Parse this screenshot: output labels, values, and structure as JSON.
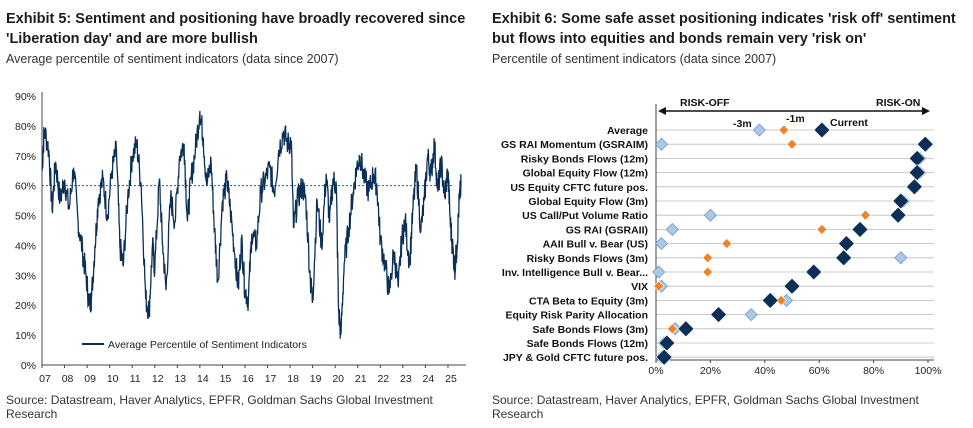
{
  "exhibit5": {
    "title": "Exhibit 5: Sentiment and positioning have broadly recovered since 'Liberation day' and are more bullish",
    "subtitle": "Average percentile of sentiment indicators (data since 2007)",
    "source": "Source: Datastream, Haver Analytics, EPFR, Goldman Sachs Global Investment Research"
  },
  "exhibit6": {
    "title": "Exhibit 6: Some safe asset positioning indicates 'risk off' sentiment but flows into equities and bonds remain very 'risk on'",
    "subtitle": "Percentile of sentiment indicators (data since 2007)",
    "source": "Source: Datastream, Haver Analytics, EPFR, Goldman Sachs Global Investment Research"
  },
  "chart_data": [
    {
      "type": "line",
      "title": "",
      "xlabel": "",
      "ylabel": "",
      "x_ticks": [
        "07",
        "08",
        "09",
        "10",
        "11",
        "12",
        "13",
        "14",
        "15",
        "16",
        "17",
        "18",
        "19",
        "20",
        "21",
        "22",
        "23",
        "24",
        "25"
      ],
      "y_ticks": [
        "0%",
        "10%",
        "20%",
        "30%",
        "40%",
        "50%",
        "60%",
        "70%",
        "80%",
        "90%"
      ],
      "xlim": [
        2007.0,
        2025.8
      ],
      "ylim": [
        0,
        90
      ],
      "legend": "bottom-left",
      "series": [
        {
          "name": "Average Percentile of Sentiment Indicators",
          "color": "#0b2f56",
          "points": [
            [
              2007.0,
              65
            ],
            [
              2007.1,
              79
            ],
            [
              2007.3,
              72
            ],
            [
              2007.45,
              52
            ],
            [
              2007.6,
              68
            ],
            [
              2007.8,
              55
            ],
            [
              2008.0,
              62
            ],
            [
              2008.2,
              52
            ],
            [
              2008.4,
              66
            ],
            [
              2008.6,
              48
            ],
            [
              2008.8,
              38
            ],
            [
              2008.95,
              30
            ],
            [
              2009.1,
              20
            ],
            [
              2009.2,
              23
            ],
            [
              2009.35,
              40
            ],
            [
              2009.5,
              56
            ],
            [
              2009.7,
              62
            ],
            [
              2009.9,
              50
            ],
            [
              2010.1,
              65
            ],
            [
              2010.3,
              72
            ],
            [
              2010.45,
              40
            ],
            [
              2010.6,
              33
            ],
            [
              2010.8,
              56
            ],
            [
              2011.0,
              70
            ],
            [
              2011.2,
              74
            ],
            [
              2011.4,
              60
            ],
            [
              2011.6,
              22
            ],
            [
              2011.75,
              18
            ],
            [
              2011.9,
              40
            ],
            [
              2012.0,
              32
            ],
            [
              2012.2,
              62
            ],
            [
              2012.35,
              40
            ],
            [
              2012.5,
              25
            ],
            [
              2012.7,
              56
            ],
            [
              2012.9,
              48
            ],
            [
              2013.1,
              70
            ],
            [
              2013.3,
              74
            ],
            [
              2013.45,
              48
            ],
            [
              2013.6,
              62
            ],
            [
              2013.8,
              72
            ],
            [
              2014.0,
              85
            ],
            [
              2014.15,
              76
            ],
            [
              2014.3,
              60
            ],
            [
              2014.5,
              68
            ],
            [
              2014.65,
              45
            ],
            [
              2014.8,
              28
            ],
            [
              2015.0,
              55
            ],
            [
              2015.2,
              62
            ],
            [
              2015.35,
              52
            ],
            [
              2015.55,
              37
            ],
            [
              2015.7,
              26
            ],
            [
              2015.85,
              42
            ],
            [
              2016.0,
              25
            ],
            [
              2016.15,
              22
            ],
            [
              2016.3,
              44
            ],
            [
              2016.5,
              40
            ],
            [
              2016.7,
              58
            ],
            [
              2016.9,
              62
            ],
            [
              2017.1,
              66
            ],
            [
              2017.3,
              58
            ],
            [
              2017.5,
              72
            ],
            [
              2017.7,
              78
            ],
            [
              2017.9,
              74
            ],
            [
              2018.05,
              75
            ],
            [
              2018.15,
              46
            ],
            [
              2018.35,
              56
            ],
            [
              2018.55,
              60
            ],
            [
              2018.7,
              55
            ],
            [
              2018.9,
              28
            ],
            [
              2019.0,
              22
            ],
            [
              2019.2,
              55
            ],
            [
              2019.4,
              40
            ],
            [
              2019.6,
              64
            ],
            [
              2019.75,
              48
            ],
            [
              2019.9,
              62
            ],
            [
              2020.05,
              60
            ],
            [
              2020.15,
              18
            ],
            [
              2020.25,
              10
            ],
            [
              2020.4,
              34
            ],
            [
              2020.6,
              46
            ],
            [
              2020.8,
              58
            ],
            [
              2020.95,
              66
            ],
            [
              2021.1,
              70
            ],
            [
              2021.3,
              62
            ],
            [
              2021.5,
              58
            ],
            [
              2021.7,
              64
            ],
            [
              2021.85,
              60
            ],
            [
              2022.0,
              42
            ],
            [
              2022.2,
              34
            ],
            [
              2022.4,
              24
            ],
            [
              2022.6,
              38
            ],
            [
              2022.8,
              26
            ],
            [
              2022.95,
              42
            ],
            [
              2023.1,
              48
            ],
            [
              2023.3,
              34
            ],
            [
              2023.45,
              52
            ],
            [
              2023.6,
              66
            ],
            [
              2023.8,
              45
            ],
            [
              2023.95,
              55
            ],
            [
              2024.1,
              70
            ],
            [
              2024.25,
              64
            ],
            [
              2024.4,
              74
            ],
            [
              2024.55,
              58
            ],
            [
              2024.7,
              68
            ],
            [
              2024.85,
              56
            ],
            [
              2025.0,
              65
            ],
            [
              2025.1,
              48
            ],
            [
              2025.2,
              40
            ],
            [
              2025.3,
              32
            ],
            [
              2025.4,
              40
            ],
            [
              2025.5,
              55
            ],
            [
              2025.58,
              60
            ]
          ]
        }
      ],
      "reference_line": {
        "value": 60,
        "style": "dotted"
      }
    },
    {
      "type": "scatter",
      "title": "",
      "annotations": [
        "RISK-OFF",
        "RISK-ON",
        "-3m",
        "-1m",
        "Current"
      ],
      "x_ticks": [
        "0%",
        "20%",
        "40%",
        "60%",
        "80%",
        "100%"
      ],
      "xlim": [
        0,
        100
      ],
      "categories": [
        "Average",
        "GS RAI Momentum (GSRAIM)",
        "Risky Bonds Flows (12m)",
        "Global Equity Flow (12m)",
        "US Equity CFTC future pos.",
        "Global Equity Flow (3m)",
        "US Call/Put Volume Ratio",
        "GS RAI (GSRAII)",
        "AAII Bull v. Bear (US)",
        "Risky Bonds Flows (3m)",
        "Inv. Intelligence Bull v. Bear...",
        "VIX",
        "CTA Beta to Equity (3m)",
        "Equity Risk Parity Allocation",
        "Safe Bonds Flows (3m)",
        "Safe Bonds Flows (12m)",
        "JPY & Gold CFTC future pos."
      ],
      "series": [
        {
          "name": "-3m",
          "color": "#a9c9e6",
          "values": [
            38,
            2,
            97,
            97,
            95,
            91,
            20,
            6,
            2,
            90,
            1,
            2,
            48,
            35,
            7,
            3,
            2
          ]
        },
        {
          "name": "-1m",
          "color": "#f0832a",
          "values": [
            47,
            50,
            95,
            95,
            94,
            91,
            77,
            61,
            26,
            19,
            19,
            1,
            46,
            24,
            6,
            3,
            2
          ]
        },
        {
          "name": "Current",
          "color": "#0b2f56",
          "values": [
            61,
            99,
            96,
            96,
            95,
            90,
            89,
            75,
            70,
            69,
            58,
            50,
            42,
            23,
            11,
            4,
            3
          ]
        }
      ]
    }
  ]
}
